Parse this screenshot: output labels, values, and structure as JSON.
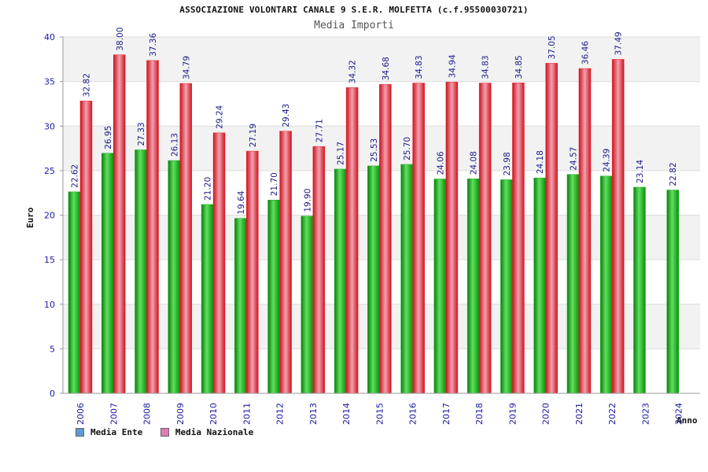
{
  "header": {
    "title": "ASSOCIAZIONE VOLONTARI CANALE 9 S.E.R. MOLFETTA (c.f.95500030721)",
    "subtitle": "Media Importi"
  },
  "axes": {
    "ylabel": "Euro",
    "xlabel": "Anno"
  },
  "legend": [
    {
      "label": "Media Ente",
      "color": "#5b9bd5"
    },
    {
      "label": "Media Nazionale",
      "color": "#e07ab0"
    }
  ],
  "chart_data": {
    "type": "bar",
    "title": "ASSOCIAZIONE VOLONTARI CANALE 9 S.E.R. MOLFETTA (c.f.95500030721)",
    "subtitle": "Media Importi",
    "xlabel": "Anno",
    "ylabel": "Euro",
    "ylim": [
      0,
      40
    ],
    "yticks": [
      0,
      5,
      10,
      15,
      20,
      25,
      30,
      35,
      40
    ],
    "grid": "horizontal bands",
    "legend_position": "bottom-left",
    "categories": [
      "2006",
      "2007",
      "2008",
      "2009",
      "2010",
      "2011",
      "2012",
      "2013",
      "2014",
      "2015",
      "2016",
      "2017",
      "2018",
      "2019",
      "2020",
      "2021",
      "2022",
      "2023",
      "2024"
    ],
    "series": [
      {
        "name": "Media Ente",
        "color": "#1fae1f",
        "values": [
          22.62,
          26.95,
          27.33,
          26.13,
          21.2,
          19.64,
          21.7,
          19.9,
          25.17,
          25.53,
          25.7,
          24.06,
          24.08,
          23.98,
          24.18,
          24.57,
          24.39,
          23.14,
          22.82
        ],
        "labels": [
          "22.62",
          "26.95",
          "27.33",
          "26.13",
          "21.20",
          "19.64",
          "21.70",
          "19.90",
          "25.17",
          "25.53",
          "25.70",
          "24.06",
          "24.08",
          "23.98",
          "24.18",
          "24.57",
          "24.39",
          "23.14",
          "22.82"
        ]
      },
      {
        "name": "Media Nazionale",
        "color": "#e8202a",
        "values": [
          32.82,
          38.0,
          37.36,
          34.79,
          29.24,
          27.19,
          29.43,
          27.71,
          34.32,
          34.68,
          34.83,
          34.94,
          34.83,
          34.85,
          37.05,
          36.46,
          37.49,
          null,
          null
        ],
        "labels": [
          "32.82",
          "38.00",
          "37.36",
          "34.79",
          "29.24",
          "27.19",
          "29.43",
          "27.71",
          "34.32",
          "34.68",
          "34.83",
          "34.94",
          "34.83",
          "34.85",
          "37.05",
          "36.46",
          "37.49",
          null,
          null
        ]
      }
    ]
  }
}
